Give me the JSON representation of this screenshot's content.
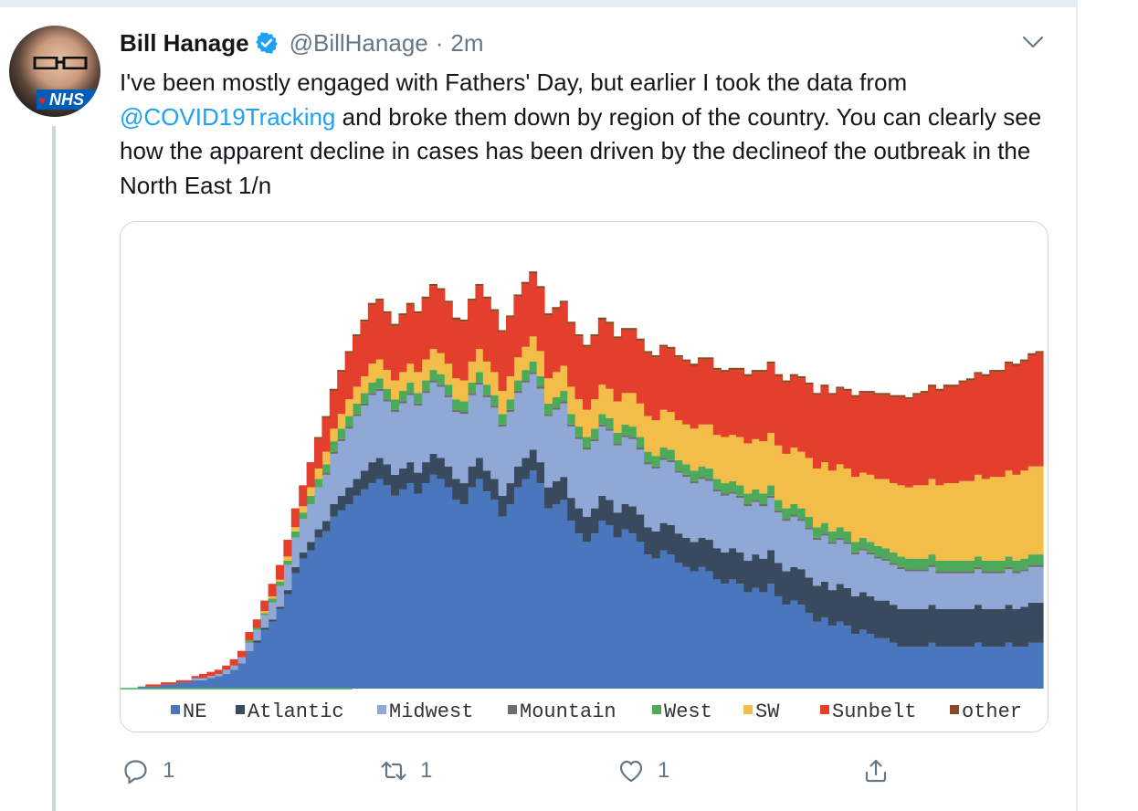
{
  "tweet": {
    "author_name": "Bill Hanage",
    "handle": "@BillHanage",
    "separator": "·",
    "time": "2m",
    "text_part1": "I've been mostly engaged with Fathers' Day, but earlier I took the data from ",
    "mention": "@COVID19Tracking",
    "text_part2": " and broke them down by region of the country. You can clearly see how the apparent decline in cases has been driven by the declineof the outbreak in the North East 1/n",
    "avatar_badge": "NHS"
  },
  "actions": {
    "reply_count": "1",
    "retweet_count": "1",
    "like_count": "1"
  },
  "icons": {
    "verified": "verified-badge-icon",
    "chevron": "chevron-down-icon",
    "reply": "reply-icon",
    "retweet": "retweet-icon",
    "like": "heart-icon",
    "share": "share-icon"
  },
  "colors": {
    "accent": "#1da1f2",
    "secondary_text": "#657786"
  },
  "chart_data": {
    "type": "area",
    "stacked": true,
    "xlabel": "",
    "ylabel": "",
    "grid": false,
    "legend_position": "bottom",
    "series": [
      {
        "name": "NE",
        "color": "#4a76bd",
        "values": [
          0,
          0,
          1,
          1,
          1,
          2,
          2,
          3,
          3,
          4,
          4,
          5,
          6,
          7,
          9,
          12,
          18,
          22,
          28,
          32,
          38,
          45,
          55,
          62,
          66,
          72,
          75,
          82,
          85,
          88,
          92,
          95,
          98,
          100,
          97,
          92,
          95,
          98,
          93,
          98,
          102,
          100,
          96,
          90,
          88,
          96,
          100,
          94,
          90,
          82,
          88,
          96,
          100,
          104,
          98,
          86,
          88,
          90,
          80,
          74,
          70,
          74,
          80,
          78,
          72,
          76,
          74,
          70,
          64,
          62,
          66,
          64,
          60,
          58,
          56,
          58,
          56,
          52,
          50,
          52,
          50,
          46,
          48,
          46,
          50,
          44,
          40,
          42,
          40,
          36,
          32,
          34,
          30,
          32,
          30,
          26,
          28,
          26,
          24,
          24,
          22,
          20,
          20,
          20,
          20,
          22,
          20,
          20,
          20,
          20,
          20,
          22,
          20,
          20,
          20,
          22,
          20,
          20,
          22,
          22
        ]
      },
      {
        "name": "Atlantic",
        "color": "#3a4a5e",
        "values": [
          0,
          0,
          0,
          0,
          0,
          0,
          0,
          0,
          0,
          0,
          0,
          0,
          0,
          0,
          0,
          0,
          0,
          1,
          1,
          1,
          1,
          2,
          3,
          3,
          4,
          4,
          5,
          6,
          7,
          8,
          8,
          9,
          10,
          10,
          10,
          10,
          10,
          10,
          10,
          10,
          10,
          10,
          10,
          10,
          10,
          10,
          10,
          10,
          10,
          10,
          10,
          10,
          10,
          10,
          10,
          10,
          11,
          11,
          11,
          12,
          12,
          12,
          12,
          12,
          12,
          12,
          13,
          13,
          13,
          13,
          13,
          14,
          14,
          14,
          14,
          14,
          15,
          15,
          15,
          15,
          15,
          15,
          16,
          16,
          16,
          16,
          16,
          16,
          17,
          17,
          17,
          17,
          17,
          18,
          18,
          18,
          18,
          18,
          18,
          18,
          18,
          18,
          18,
          18,
          18,
          18,
          18,
          18,
          18,
          18,
          18,
          18,
          18,
          18,
          18,
          18,
          18,
          19,
          19,
          19
        ]
      },
      {
        "name": "Midwest",
        "color": "#8fa8d6",
        "values": [
          0,
          0,
          0,
          0,
          0,
          0,
          0,
          0,
          0,
          1,
          1,
          1,
          1,
          2,
          2,
          3,
          4,
          5,
          6,
          8,
          10,
          12,
          14,
          16,
          18,
          20,
          22,
          24,
          26,
          28,
          30,
          31,
          32,
          32,
          30,
          30,
          31,
          32,
          32,
          33,
          34,
          34,
          33,
          32,
          33,
          34,
          35,
          35,
          34,
          33,
          34,
          35,
          36,
          36,
          35,
          34,
          34,
          35,
          34,
          33,
          32,
          32,
          33,
          33,
          32,
          32,
          32,
          31,
          30,
          30,
          30,
          30,
          29,
          29,
          28,
          28,
          28,
          27,
          27,
          26,
          26,
          26,
          25,
          25,
          25,
          24,
          24,
          24,
          23,
          23,
          22,
          22,
          22,
          21,
          21,
          20,
          20,
          20,
          20,
          19,
          19,
          19,
          18,
          18,
          18,
          18,
          17,
          17,
          17,
          17,
          17,
          17,
          17,
          17,
          17,
          17,
          17,
          17,
          17,
          17
        ]
      },
      {
        "name": "Mountain",
        "color": "#6e6e6e",
        "values": [
          0,
          0,
          0,
          0,
          0,
          0,
          0,
          0,
          0,
          0,
          0,
          0,
          0,
          0,
          0,
          0,
          0,
          0,
          0,
          0,
          0,
          0,
          0,
          0,
          0,
          0,
          1,
          1,
          1,
          1,
          1,
          1,
          1,
          1,
          1,
          1,
          1,
          1,
          1,
          1,
          1,
          1,
          1,
          1,
          1,
          1,
          1,
          1,
          1,
          1,
          1,
          1,
          1,
          1,
          1,
          1,
          1,
          1,
          1,
          1,
          1,
          1,
          1,
          1,
          1,
          1,
          1,
          1,
          1,
          1,
          1,
          1,
          1,
          1,
          1,
          1,
          1,
          1,
          1,
          1,
          1,
          1,
          1,
          1,
          1,
          1,
          1,
          1,
          1,
          1,
          1,
          1,
          1,
          1,
          1,
          1,
          1,
          1,
          1,
          1,
          1,
          1,
          1,
          1,
          1,
          1,
          1,
          1,
          1,
          1,
          1,
          1,
          1,
          1,
          1,
          1,
          1,
          1,
          1,
          1
        ]
      },
      {
        "name": "West",
        "color": "#4caa5a",
        "values": [
          0,
          0,
          0,
          0,
          0,
          0,
          0,
          0,
          0,
          0,
          0,
          0,
          0,
          0,
          0,
          0,
          1,
          1,
          1,
          2,
          2,
          2,
          3,
          3,
          4,
          4,
          4,
          5,
          5,
          5,
          5,
          5,
          5,
          5,
          5,
          5,
          5,
          5,
          5,
          5,
          5,
          5,
          5,
          5,
          5,
          5,
          5,
          5,
          5,
          5,
          5,
          5,
          5,
          5,
          5,
          5,
          5,
          5,
          5,
          5,
          5,
          5,
          5,
          5,
          5,
          5,
          5,
          5,
          5,
          5,
          5,
          5,
          5,
          5,
          5,
          5,
          5,
          5,
          5,
          5,
          5,
          5,
          5,
          5,
          5,
          5,
          5,
          5,
          5,
          5,
          5,
          5,
          5,
          5,
          5,
          5,
          5,
          5,
          5,
          5,
          5,
          5,
          5,
          5,
          5,
          5,
          5,
          5,
          5,
          5,
          5,
          5,
          5,
          5,
          5,
          5,
          5,
          5,
          5,
          5
        ]
      },
      {
        "name": "SW",
        "color": "#f2bd48",
        "values": [
          0,
          0,
          0,
          0,
          0,
          0,
          0,
          0,
          0,
          0,
          0,
          0,
          0,
          0,
          0,
          0,
          0,
          0,
          1,
          1,
          1,
          2,
          2,
          3,
          4,
          5,
          6,
          6,
          7,
          8,
          8,
          8,
          9,
          9,
          9,
          9,
          9,
          9,
          10,
          10,
          10,
          10,
          10,
          10,
          10,
          10,
          11,
          11,
          11,
          11,
          11,
          11,
          11,
          12,
          12,
          12,
          12,
          12,
          13,
          13,
          13,
          14,
          14,
          14,
          15,
          15,
          16,
          16,
          17,
          17,
          18,
          18,
          19,
          19,
          20,
          20,
          21,
          21,
          22,
          22,
          23,
          24,
          24,
          25,
          25,
          26,
          26,
          27,
          27,
          28,
          28,
          29,
          29,
          30,
          30,
          31,
          31,
          32,
          32,
          33,
          33,
          34,
          34,
          35,
          35,
          36,
          36,
          37,
          37,
          38,
          38,
          39,
          39,
          40,
          40,
          41,
          41,
          42,
          42,
          42
        ]
      },
      {
        "name": "Sunbelt",
        "color": "#e43e2c",
        "values": [
          0,
          0,
          0,
          1,
          1,
          1,
          1,
          1,
          1,
          1,
          2,
          2,
          2,
          2,
          3,
          3,
          4,
          4,
          5,
          6,
          7,
          8,
          9,
          10,
          12,
          14,
          16,
          18,
          20,
          22,
          24,
          26,
          28,
          28,
          27,
          26,
          27,
          28,
          28,
          29,
          30,
          30,
          29,
          28,
          28,
          29,
          30,
          30,
          29,
          28,
          28,
          29,
          30,
          30,
          30,
          30,
          30,
          30,
          30,
          30,
          30,
          30,
          31,
          31,
          30,
          30,
          30,
          30,
          30,
          30,
          30,
          30,
          30,
          30,
          30,
          31,
          31,
          31,
          31,
          31,
          32,
          32,
          32,
          33,
          33,
          33,
          34,
          34,
          35,
          35,
          35,
          36,
          36,
          36,
          37,
          38,
          38,
          39,
          40,
          40,
          41,
          42,
          42,
          43,
          44,
          44,
          45,
          46,
          46,
          47,
          48,
          48,
          49,
          50,
          50,
          51,
          52,
          52,
          53,
          54
        ]
      },
      {
        "name": "other",
        "color": "#8c4a22",
        "values": [
          0,
          0,
          0,
          0,
          0,
          0,
          0,
          0,
          0,
          0,
          0,
          0,
          0,
          0,
          0,
          0,
          0,
          0,
          0,
          0,
          0,
          0,
          0,
          0,
          0,
          1,
          1,
          1,
          1,
          1,
          1,
          1,
          1,
          1,
          1,
          1,
          1,
          1,
          1,
          1,
          1,
          1,
          1,
          1,
          1,
          1,
          1,
          1,
          1,
          1,
          1,
          1,
          1,
          1,
          1,
          1,
          1,
          1,
          1,
          1,
          1,
          1,
          1,
          1,
          1,
          1,
          1,
          1,
          1,
          1,
          1,
          1,
          1,
          1,
          1,
          1,
          1,
          1,
          1,
          1,
          1,
          1,
          1,
          1,
          1,
          1,
          1,
          1,
          1,
          1,
          1,
          1,
          1,
          1,
          1,
          1,
          1,
          1,
          1,
          1,
          1,
          1,
          1,
          1,
          1,
          1,
          1,
          1,
          1,
          1,
          1,
          1,
          1,
          1,
          1,
          1,
          1,
          1,
          1,
          1
        ]
      }
    ],
    "ylim": [
      0,
      220
    ]
  }
}
